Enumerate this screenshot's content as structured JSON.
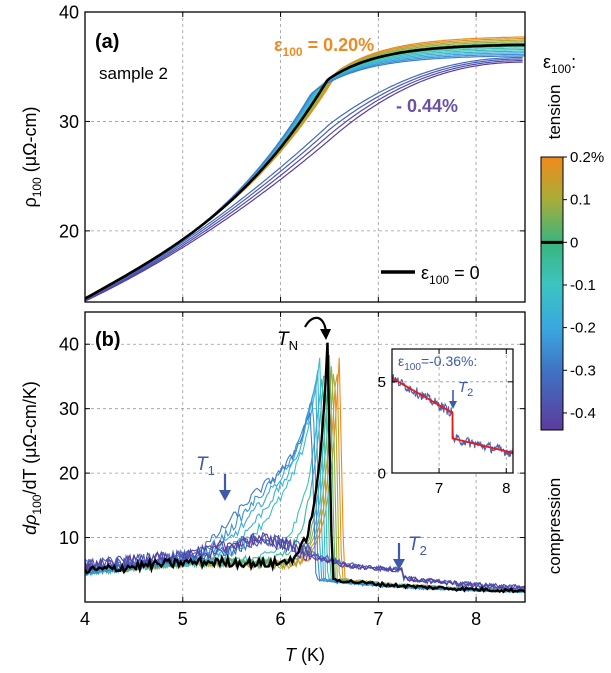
{
  "chart_data": [
    {
      "panel": "(a)",
      "type": "line",
      "sample_label": "sample 2",
      "xlabel": "T (K)",
      "ylabel_main": "ρ",
      "ylabel_sub": "100",
      "ylabel_unit": " (μΩ-cm)",
      "xlim": [
        4,
        8.5
      ],
      "ylim": [
        13.5,
        40
      ],
      "xticks": [
        4,
        5,
        6,
        7,
        8
      ],
      "yticks": [
        20,
        30,
        40
      ],
      "grid": true,
      "annotations": [
        {
          "prefix": "ε",
          "sub": "100",
          "text": " = 0.20%",
          "color": "#ee8a22"
        },
        {
          "prefix": "",
          "sub": "",
          "text": "- 0.44%",
          "color": "#6a51a3"
        }
      ],
      "legend": {
        "prefix": "ε",
        "sub": "100",
        "text": " = 0",
        "position": "bottom-right",
        "color": "#000000"
      },
      "strain_levels": [
        0.2,
        0.16,
        0.12,
        0.08,
        0.04,
        0,
        -0.04,
        -0.08,
        -0.12,
        -0.16,
        -0.2,
        -0.24,
        -0.28,
        -0.32,
        -0.36,
        -0.4,
        -0.44
      ],
      "series": [
        {
          "strain": 0.2,
          "TN": 6.6,
          "x": [
            4.0,
            5.0,
            6.0,
            6.6,
            7.0,
            8.5
          ],
          "y": [
            13.9,
            19.3,
            27.3,
            34.8,
            35.9,
            37.8
          ]
        },
        {
          "strain": 0,
          "TN": 6.48,
          "x": [
            4.0,
            5.0,
            6.0,
            6.48,
            7.0,
            8.5
          ],
          "y": [
            13.8,
            19.0,
            26.7,
            33.8,
            35.0,
            37.0
          ]
        },
        {
          "strain": -0.44,
          "TN": null,
          "x": [
            4.0,
            5.0,
            6.0,
            6.5,
            7.0,
            8.5
          ],
          "y": [
            13.6,
            18.5,
            24.0,
            28.3,
            31.6,
            35.0
          ]
        }
      ]
    },
    {
      "panel": "(b)",
      "type": "line",
      "xlabel": "T (K)",
      "ylabel_main": "dρ",
      "ylabel_sub": "100",
      "ylabel_unit": "/dT (μΩ-cm/K)",
      "xlim": [
        4,
        8.5
      ],
      "ylim": [
        0,
        45
      ],
      "xticks": [
        4,
        5,
        6,
        7,
        8
      ],
      "xtick_labels": [
        "4",
        "5",
        "6",
        "7",
        "8"
      ],
      "yticks": [
        10,
        20,
        30,
        40
      ],
      "grid": true,
      "annotations": [
        {
          "label": "T",
          "sub": "N",
          "x": 6.48,
          "y": 39
        },
        {
          "label": "T",
          "sub": "1",
          "x": 5.45,
          "y": 13
        },
        {
          "label": "T",
          "sub": "2",
          "x": 7.25,
          "y": 6
        }
      ],
      "peak_values": {
        "T_N_zero_strain": 6.48,
        "peak_height_zero_strain": 39.5
      },
      "inset": {
        "title_prefix": "ε",
        "title_sub": "100",
        "title_text": "=-0.36%:",
        "annotation": {
          "label": "T",
          "sub": "2",
          "x": 7.2
        },
        "xlim": [
          6.3,
          8.1
        ],
        "ylim": [
          0,
          6.8
        ],
        "xticks": [
          7,
          8
        ],
        "yticks": [
          0,
          5
        ],
        "data_x": [
          6.3,
          7.2,
          7.2,
          8.1
        ],
        "data_y": [
          5.2,
          3.3,
          1.9,
          1.1
        ],
        "fit_color": "#e41a1c",
        "data_color": "#4f5faa"
      }
    }
  ],
  "colorbar": {
    "title_prefix": "ε",
    "title_sub": "100",
    "title_suffix": ":",
    "top_label": "tension",
    "bottom_label": "compression",
    "ticks": [
      {
        "value": 0.2,
        "label": "0.2%"
      },
      {
        "value": 0.1,
        "label": "0.1"
      },
      {
        "value": 0,
        "label": "0"
      },
      {
        "value": -0.1,
        "label": "-0.1"
      },
      {
        "value": -0.2,
        "label": "-0.2"
      },
      {
        "value": -0.3,
        "label": "-0.3"
      },
      {
        "value": -0.4,
        "label": "-0.4"
      }
    ],
    "range": [
      -0.44,
      0.2
    ],
    "stops": [
      {
        "value": 0.2,
        "color": "#f08a1c"
      },
      {
        "value": 0.1,
        "color": "#a8ad3a"
      },
      {
        "value": 0.0,
        "color": "#3ab57d"
      },
      {
        "value": -0.1,
        "color": "#3cc4c0"
      },
      {
        "value": -0.2,
        "color": "#3aa8e0"
      },
      {
        "value": -0.3,
        "color": "#3f73c4"
      },
      {
        "value": -0.44,
        "color": "#5b3c9e"
      }
    ]
  }
}
